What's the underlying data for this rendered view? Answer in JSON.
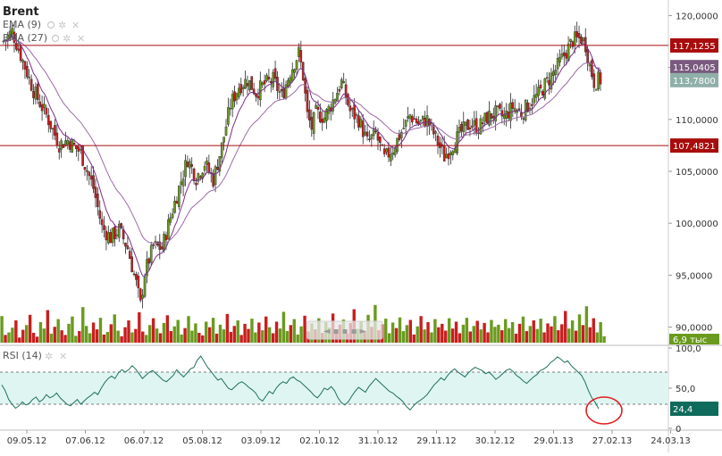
{
  "chart_data": [
    {
      "type": "candlestick",
      "title": "Brent",
      "indicators": [
        {
          "name": "EMA (9)",
          "color": "#7a2e8a"
        },
        {
          "name": "EMA (27)",
          "color": "#9c6aa6"
        }
      ],
      "ylim": [
        88.5,
        121.5
      ],
      "y_ticks": [
        "120,0000",
        "115,0000",
        "110,0000",
        "105,0000",
        "100,0000",
        "95,0000",
        "90,0000"
      ],
      "y_tick_values": [
        120,
        115,
        110,
        105,
        100,
        95,
        90
      ],
      "x_tick_labels": [
        "09.05.12",
        "07.06.12",
        "06.07.12",
        "05.08.12",
        "03.09.12",
        "02.10.12",
        "31.10.12",
        "29.11.12",
        "30.12.12",
        "29.01.13",
        "27.02.13",
        "24.03.13"
      ],
      "horizontal_lines": [
        {
          "value": 117.1255,
          "label": "117,1255",
          "color": "#a80c0c"
        },
        {
          "value": 107.4821,
          "label": "107,4821",
          "color": "#a80c0c"
        }
      ],
      "price_tags": [
        {
          "value": 115.0405,
          "label": "115,0405",
          "color": "#7a5a7e"
        },
        {
          "value": 113.78,
          "label": "113,7800",
          "color": "#8fb0a8"
        }
      ],
      "close_path": [
        [
          0,
          117.5
        ],
        [
          4,
          118.5
        ],
        [
          8,
          116.2
        ],
        [
          14,
          112.8
        ],
        [
          20,
          110.4
        ],
        [
          26,
          107.6
        ],
        [
          30,
          108.0
        ],
        [
          36,
          106.8
        ],
        [
          42,
          103.4
        ],
        [
          46,
          99.6
        ],
        [
          50,
          98.6
        ],
        [
          54,
          99.4
        ],
        [
          58,
          97.6
        ],
        [
          62,
          94.2
        ],
        [
          64,
          92.1
        ],
        [
          66,
          95.2
        ],
        [
          70,
          97.8
        ],
        [
          74,
          97.6
        ],
        [
          78,
          100.6
        ],
        [
          82,
          103.4
        ],
        [
          86,
          106.2
        ],
        [
          90,
          104.4
        ],
        [
          94,
          105.8
        ],
        [
          98,
          104.2
        ],
        [
          102,
          107.4
        ],
        [
          106,
          111.4
        ],
        [
          110,
          113.2
        ],
        [
          114,
          113.8
        ],
        [
          118,
          112.6
        ],
        [
          122,
          113.4
        ],
        [
          126,
          113.8
        ],
        [
          130,
          112.2
        ],
        [
          134,
          114.6
        ],
        [
          138,
          116.4
        ],
        [
          140,
          114.2
        ],
        [
          142,
          110.4
        ],
        [
          144,
          109.2
        ],
        [
          146,
          110.6
        ],
        [
          150,
          110.2
        ],
        [
          154,
          111.8
        ],
        [
          158,
          113.6
        ],
        [
          162,
          110.8
        ],
        [
          166,
          110.0
        ],
        [
          170,
          107.8
        ],
        [
          174,
          108.6
        ],
        [
          178,
          106.2
        ],
        [
          182,
          107.2
        ],
        [
          186,
          108.8
        ],
        [
          190,
          110.4
        ],
        [
          194,
          109.6
        ],
        [
          198,
          110.0
        ],
        [
          202,
          108.2
        ],
        [
          206,
          106.4
        ],
        [
          210,
          107.6
        ],
        [
          214,
          108.8
        ],
        [
          218,
          109.6
        ],
        [
          222,
          109.2
        ],
        [
          226,
          110.2
        ],
        [
          230,
          110.6
        ],
        [
          234,
          110.2
        ],
        [
          238,
          111.2
        ],
        [
          242,
          110.6
        ],
        [
          246,
          111.6
        ],
        [
          250,
          112.4
        ],
        [
          254,
          113.6
        ],
        [
          258,
          114.8
        ],
        [
          262,
          116.2
        ],
        [
          266,
          117.6
        ],
        [
          270,
          117.8
        ],
        [
          272,
          117.2
        ],
        [
          274,
          115.2
        ],
        [
          276,
          113.6
        ],
        [
          278,
          113.8
        ]
      ],
      "volume_levels": [
        0.62,
        0.18,
        0.24,
        0.35,
        0.52,
        0.12,
        0.3,
        0.41,
        0.65,
        0.23,
        0.14,
        0.48,
        0.33,
        0.76,
        0.21,
        0.37,
        0.55,
        0.29,
        0.18,
        0.44,
        0.61,
        0.16,
        0.27,
        0.83,
        0.39,
        0.22,
        0.47,
        0.31,
        0.58,
        0.19,
        0.25,
        0.43,
        0.66,
        0.28,
        0.15,
        0.36,
        0.52,
        0.24,
        0.32,
        0.71,
        0.26,
        0.18,
        0.41,
        0.57,
        0.33,
        0.22,
        0.46,
        0.64,
        0.27,
        0.38,
        0.53,
        0.19,
        0.34,
        0.62,
        0.28,
        0.45,
        0.23,
        0.17,
        0.49,
        0.36,
        0.58,
        0.21,
        0.42,
        0.31,
        0.67,
        0.25,
        0.39,
        0.52,
        0.18,
        0.44,
        0.32,
        0.56,
        0.24,
        0.47,
        0.29,
        0.61,
        0.36,
        0.22,
        0.49,
        0.33,
        0.72,
        0.27,
        0.41,
        0.55,
        0.19,
        0.38,
        0.63,
        0.26,
        0.45,
        0.31,
        0.57,
        0.23,
        0.48,
        0.35,
        0.68,
        0.28,
        0.42,
        0.54,
        0.21,
        0.46,
        0.78,
        0.32,
        0.51,
        0.25,
        0.65,
        0.37,
        0.88,
        0.29,
        0.43,
        0.56,
        0.22,
        0.47,
        0.34,
        0.59,
        0.27,
        0.41,
        0.53,
        0.19,
        0.38,
        0.62,
        0.31,
        0.48,
        0.24,
        0.55,
        0.36,
        0.44,
        0.28,
        0.57,
        0.33,
        0.49,
        0.22,
        0.42,
        0.58,
        0.26,
        0.39,
        0.51,
        0.31,
        0.46,
        0.24,
        0.53,
        0.37,
        0.42,
        0.29,
        0.55,
        0.34,
        0.48,
        0.21,
        0.44,
        0.61,
        0.27,
        0.39,
        0.52,
        0.32,
        0.56,
        0.24,
        0.45,
        0.38,
        0.62,
        0.29,
        0.43,
        0.74,
        0.33,
        0.52,
        0.28,
        0.66,
        0.41,
        0.85,
        0.36,
        0.57,
        0.24,
        0.48,
        0.15
      ],
      "volume_last_label": "6,9 тыс",
      "series_colors": {
        "up": "#6a9a1e",
        "down": "#c81e1e"
      }
    },
    {
      "type": "line",
      "title": "RSI (14)",
      "ylim": [
        0,
        100
      ],
      "y_ticks": [
        "100,0",
        "50,0",
        "0"
      ],
      "y_tick_values": [
        100,
        50,
        0
      ],
      "band": [
        30,
        70
      ],
      "current_label": "24,4",
      "values": [
        54,
        47,
        36,
        30,
        25,
        28,
        33,
        29,
        31,
        36,
        39,
        33,
        36,
        42,
        38,
        40,
        44,
        38,
        34,
        30,
        28,
        32,
        36,
        30,
        34,
        38,
        41,
        45,
        42,
        50,
        57,
        62,
        65,
        62,
        69,
        73,
        70,
        73,
        78,
        74,
        68,
        62,
        66,
        70,
        72,
        68,
        64,
        60,
        58,
        62,
        66,
        73,
        68,
        64,
        69,
        74,
        76,
        85,
        90,
        83,
        76,
        71,
        65,
        60,
        62,
        56,
        50,
        48,
        52,
        56,
        58,
        55,
        51,
        48,
        44,
        37,
        34,
        40,
        46,
        43,
        50,
        55,
        58,
        56,
        62,
        64,
        60,
        58,
        54,
        50,
        46,
        41,
        38,
        43,
        50,
        48,
        52,
        47,
        38,
        32,
        29,
        33,
        40,
        46,
        51,
        48,
        45,
        52,
        57,
        62,
        58,
        54,
        50,
        46,
        44,
        40,
        37,
        33,
        27,
        23,
        28,
        32,
        35,
        38,
        42,
        48,
        54,
        58,
        63,
        60,
        66,
        71,
        74,
        70,
        67,
        64,
        69,
        73,
        76,
        74,
        72,
        68,
        70,
        66,
        61,
        64,
        68,
        72,
        74,
        71,
        66,
        63,
        59,
        56,
        60,
        64,
        67,
        72,
        74,
        77,
        82,
        85,
        89,
        86,
        82,
        84,
        78,
        74,
        70,
        66,
        58,
        47,
        38,
        32,
        24.4
      ]
    }
  ],
  "scroll_button_label": "◄ ▪ ▪ ▪ ►"
}
